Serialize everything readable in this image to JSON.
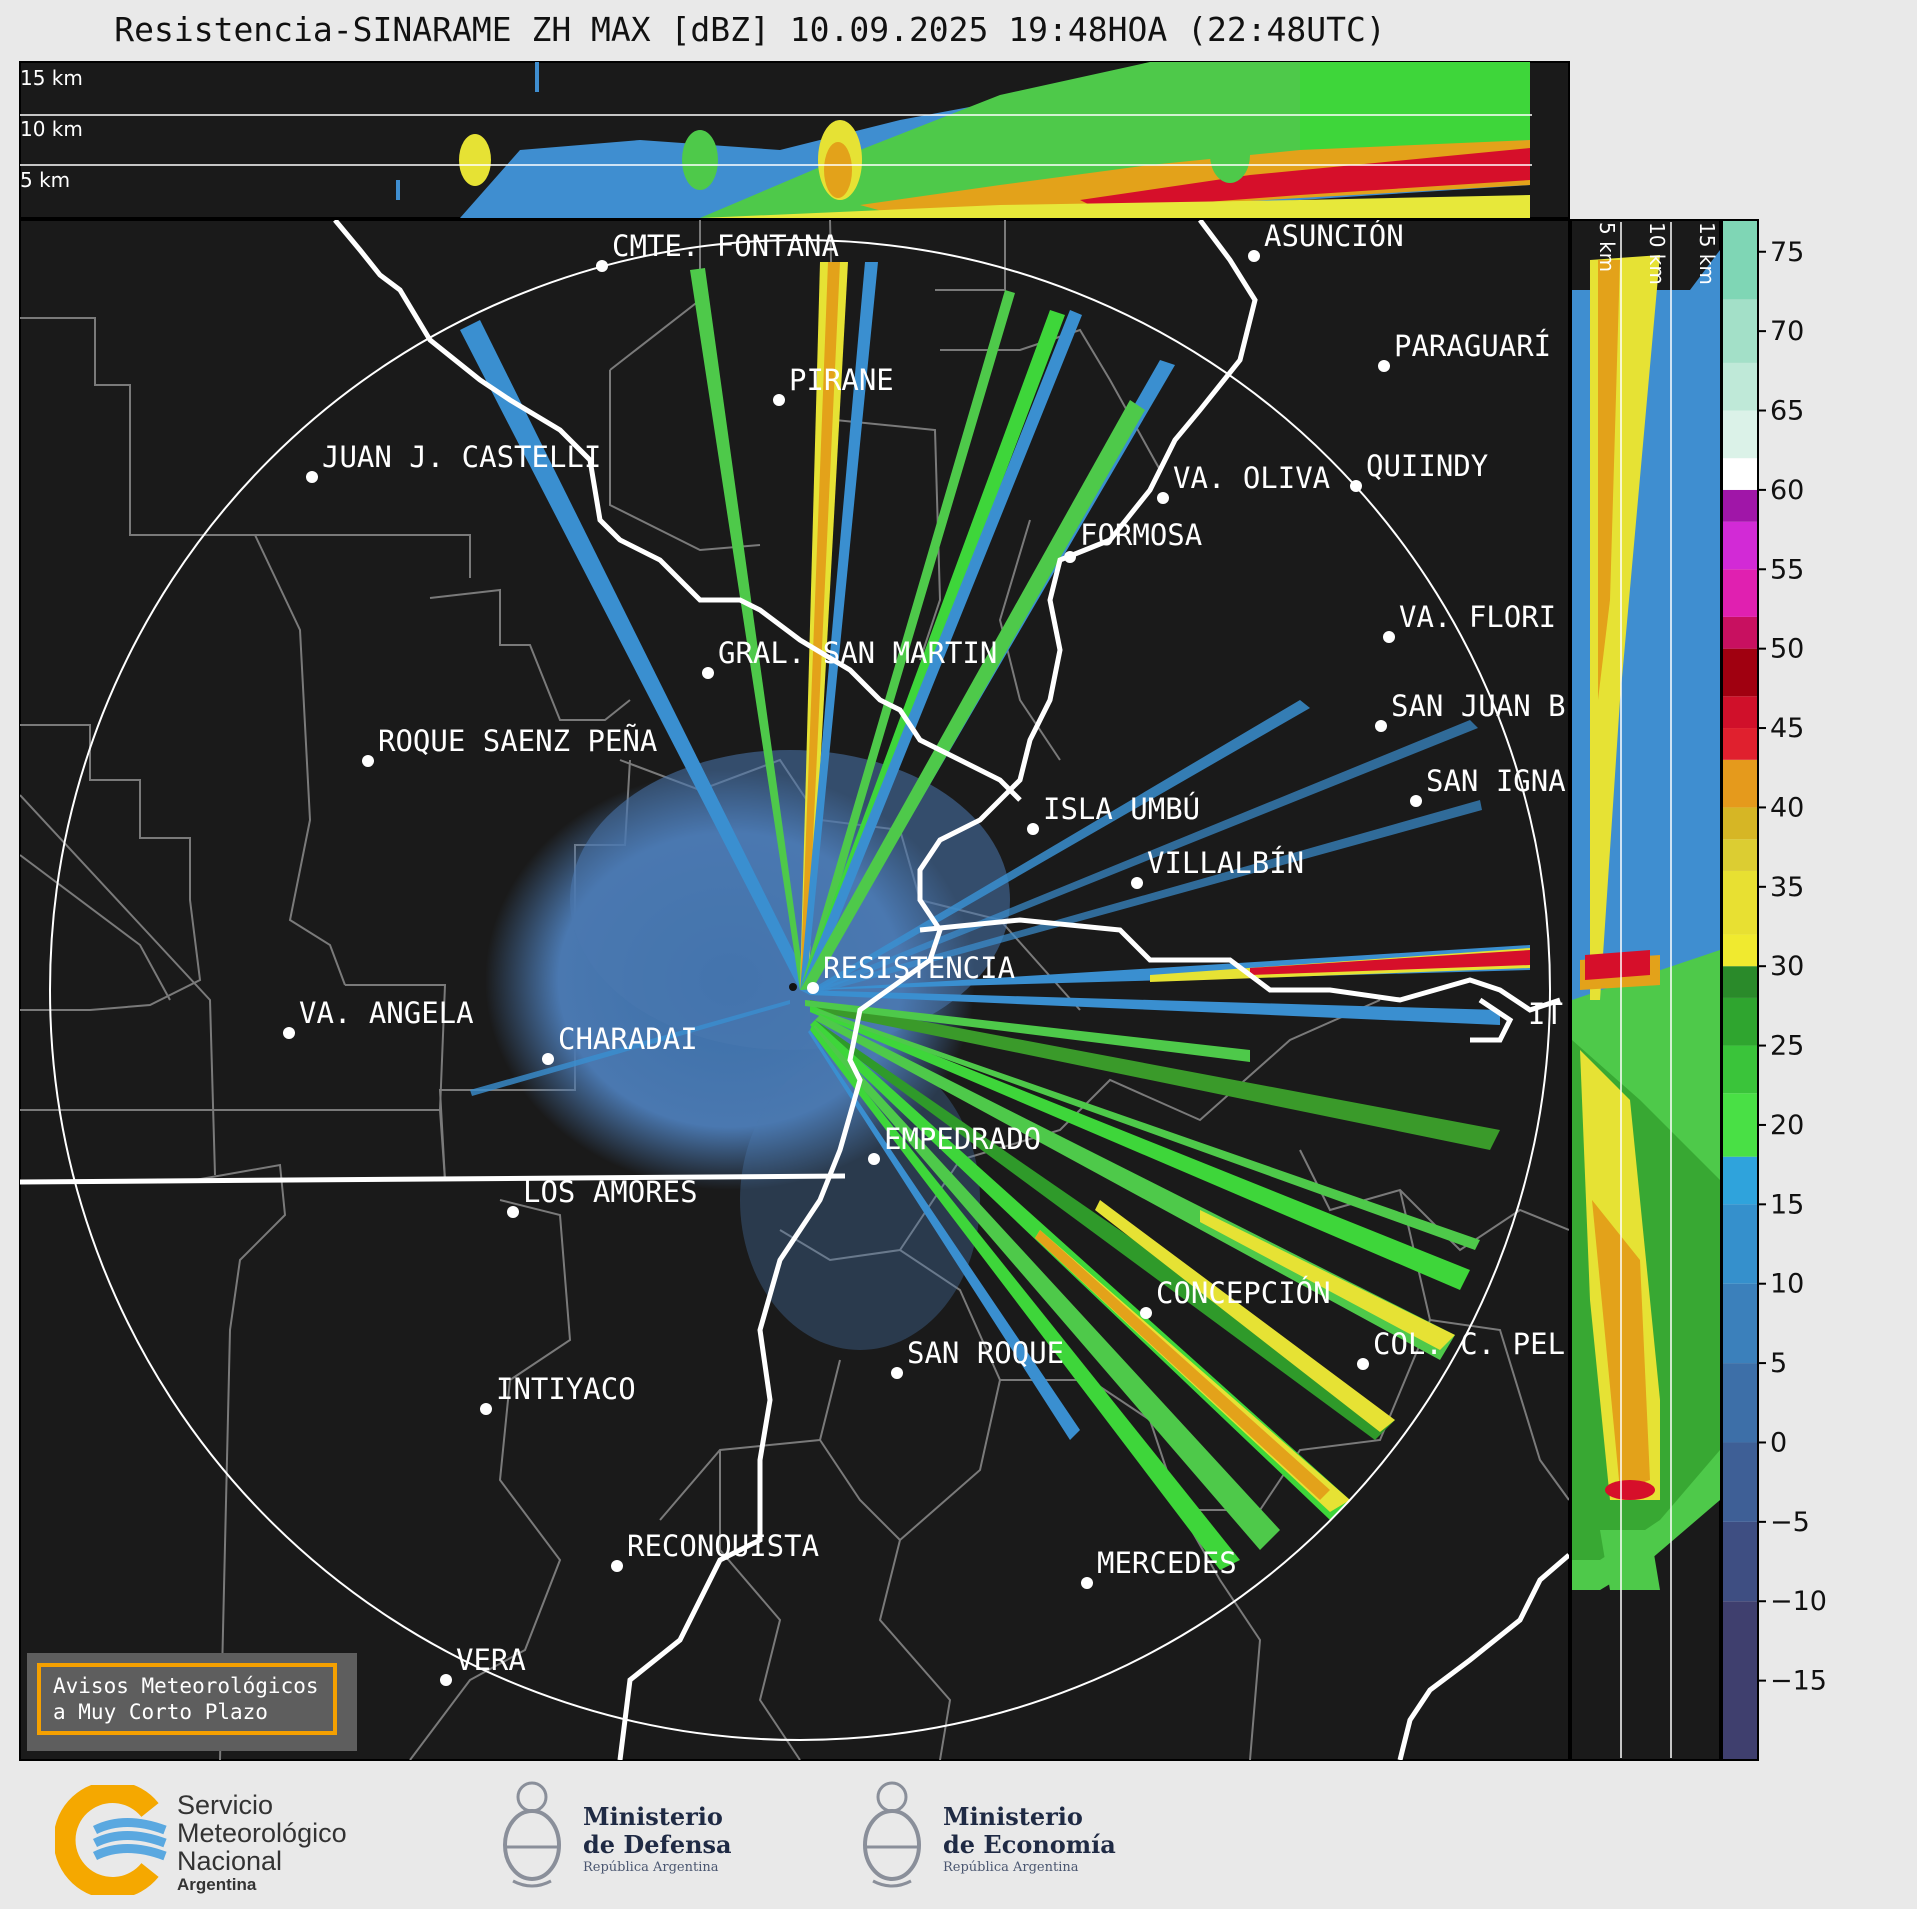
{
  "title": "Resistencia-SINARAME ZH MAX [dBZ] 10.09.2025 19:48HOA (22:48UTC)",
  "top_profile": {
    "labels": [
      "15 km",
      "10 km",
      "5 km"
    ]
  },
  "side_profile": {
    "labels": [
      "5 km",
      "10 km",
      "15 km"
    ]
  },
  "colorbar": {
    "ticks": [
      "75",
      "70",
      "65",
      "60",
      "55",
      "50",
      "45",
      "40",
      "35",
      "30",
      "25",
      "20",
      "15",
      "10",
      "5",
      "0",
      "−5",
      "−10",
      "−15"
    ],
    "range": [
      -20,
      77
    ]
  },
  "cities": [
    {
      "name": "CMTE. FONTANA"
    },
    {
      "name": "ASUNCIÓN"
    },
    {
      "name": "PARAGUARÍ"
    },
    {
      "name": "PIRANE"
    },
    {
      "name": "JUAN J. CASTELLI"
    },
    {
      "name": "VA. OLIVA"
    },
    {
      "name": "QUIINDY"
    },
    {
      "name": "FORMOSA"
    },
    {
      "name": "VA. FLORI"
    },
    {
      "name": "GRAL. SAN MARTIN"
    },
    {
      "name": "SAN JUAN B"
    },
    {
      "name": "ROQUE SAENZ PEÑA"
    },
    {
      "name": "SAN IGNA"
    },
    {
      "name": "ISLA UMBÚ"
    },
    {
      "name": "VILLALBÍN"
    },
    {
      "name": "RESISTENCIA"
    },
    {
      "name": "VA. ANGELA"
    },
    {
      "name": "CHARADAI"
    },
    {
      "name": "EMPEDRADO"
    },
    {
      "name": "LOS AMORES"
    },
    {
      "name": "CONCEPCIÓN"
    },
    {
      "name": "SAN ROQUE"
    },
    {
      "name": "COL. C. PEL"
    },
    {
      "name": "INTIYACO"
    },
    {
      "name": "RECONQUISTA"
    },
    {
      "name": "MERCEDES"
    },
    {
      "name": "VERA"
    },
    {
      "name": "IT"
    }
  ],
  "warning": {
    "line1": "Avisos Meteorológicos",
    "line2": "a Muy Corto Plazo"
  },
  "logos": {
    "smn": {
      "line1": "Servicio",
      "line2": "Meteorológico",
      "line3": "Nacional",
      "line4": "Argentina"
    },
    "defensa": {
      "line1": "Ministerio",
      "line2": "de Defensa",
      "line3": "República Argentina"
    },
    "economia": {
      "line1": "Ministerio",
      "line2": "de Economía",
      "line3": "República Argentina"
    }
  },
  "colors": {
    "background": "#1a1a1a",
    "echo_weak": "#4a78b0",
    "accent": "#f5a000"
  }
}
